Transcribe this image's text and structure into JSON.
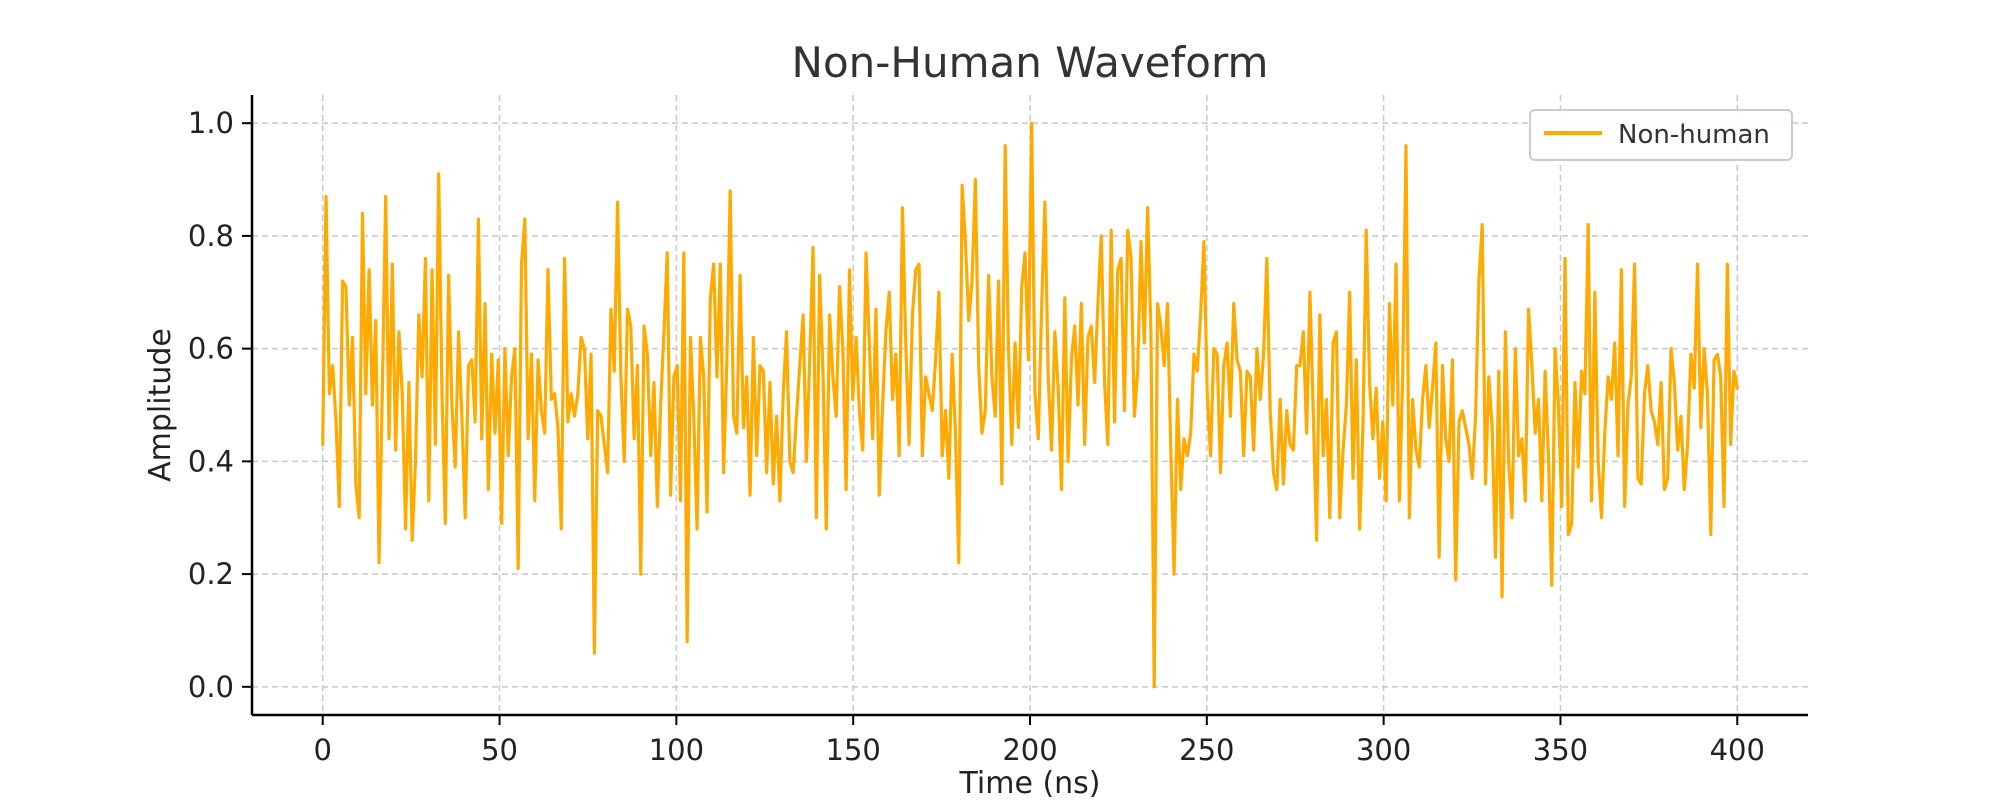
{
  "chart_data": {
    "type": "line",
    "title": "Non-Human Waveform",
    "xlabel": "Time (ns)",
    "ylabel": "Amplitude",
    "xlim": [
      -20,
      420
    ],
    "ylim": [
      -0.05,
      1.05
    ],
    "xticks": [
      0,
      50,
      100,
      150,
      200,
      250,
      300,
      350,
      400
    ],
    "yticks": [
      0.0,
      0.2,
      0.4,
      0.6,
      0.8,
      1.0
    ],
    "xtick_labels": [
      "0",
      "50",
      "100",
      "150",
      "200",
      "250",
      "300",
      "350",
      "400"
    ],
    "ytick_labels": [
      "0.0",
      "0.2",
      "0.4",
      "0.6",
      "0.8",
      "1.0"
    ],
    "grid": true,
    "legend_position": "top-right",
    "series": [
      {
        "name": "Non-human",
        "color": "#FFAA00",
        "x_start": 0,
        "x_end": 400,
        "values": [
          0.43,
          0.87,
          0.52,
          0.57,
          0.47,
          0.32,
          0.72,
          0.71,
          0.5,
          0.62,
          0.36,
          0.3,
          0.84,
          0.52,
          0.74,
          0.5,
          0.65,
          0.22,
          0.53,
          0.87,
          0.44,
          0.75,
          0.42,
          0.63,
          0.52,
          0.28,
          0.54,
          0.26,
          0.4,
          0.66,
          0.55,
          0.76,
          0.33,
          0.74,
          0.43,
          0.91,
          0.52,
          0.29,
          0.73,
          0.5,
          0.39,
          0.63,
          0.48,
          0.3,
          0.57,
          0.58,
          0.47,
          0.83,
          0.44,
          0.68,
          0.35,
          0.59,
          0.45,
          0.58,
          0.29,
          0.6,
          0.41,
          0.55,
          0.6,
          0.21,
          0.75,
          0.83,
          0.44,
          0.59,
          0.33,
          0.58,
          0.49,
          0.45,
          0.74,
          0.51,
          0.52,
          0.46,
          0.28,
          0.76,
          0.47,
          0.52,
          0.48,
          0.52,
          0.62,
          0.6,
          0.44,
          0.59,
          0.06,
          0.49,
          0.48,
          0.43,
          0.38,
          0.67,
          0.56,
          0.86,
          0.55,
          0.4,
          0.67,
          0.64,
          0.44,
          0.57,
          0.2,
          0.64,
          0.59,
          0.41,
          0.54,
          0.32,
          0.5,
          0.63,
          0.77,
          0.34,
          0.55,
          0.57,
          0.33,
          0.77,
          0.08,
          0.62,
          0.48,
          0.28,
          0.62,
          0.55,
          0.31,
          0.69,
          0.75,
          0.55,
          0.75,
          0.38,
          0.58,
          0.88,
          0.48,
          0.45,
          0.73,
          0.46,
          0.55,
          0.34,
          0.62,
          0.41,
          0.57,
          0.56,
          0.38,
          0.54,
          0.36,
          0.48,
          0.33,
          0.52,
          0.63,
          0.4,
          0.38,
          0.48,
          0.57,
          0.66,
          0.4,
          0.58,
          0.78,
          0.3,
          0.73,
          0.56,
          0.28,
          0.66,
          0.55,
          0.48,
          0.71,
          0.6,
          0.35,
          0.74,
          0.51,
          0.62,
          0.49,
          0.42,
          0.77,
          0.61,
          0.44,
          0.67,
          0.34,
          0.5,
          0.63,
          0.7,
          0.51,
          0.59,
          0.41,
          0.85,
          0.61,
          0.43,
          0.66,
          0.74,
          0.75,
          0.41,
          0.55,
          0.52,
          0.49,
          0.58,
          0.7,
          0.41,
          0.49,
          0.37,
          0.59,
          0.45,
          0.22,
          0.89,
          0.79,
          0.65,
          0.72,
          0.9,
          0.57,
          0.45,
          0.49,
          0.73,
          0.55,
          0.48,
          0.72,
          0.36,
          0.96,
          0.6,
          0.43,
          0.61,
          0.46,
          0.71,
          0.77,
          0.58,
          1.0,
          0.52,
          0.44,
          0.67,
          0.86,
          0.55,
          0.42,
          0.63,
          0.53,
          0.35,
          0.69,
          0.4,
          0.58,
          0.64,
          0.5,
          0.68,
          0.43,
          0.62,
          0.64,
          0.54,
          0.68,
          0.8,
          0.54,
          0.43,
          0.81,
          0.47,
          0.74,
          0.76,
          0.49,
          0.81,
          0.76,
          0.48,
          0.56,
          0.79,
          0.61,
          0.85,
          0.63,
          0.0,
          0.68,
          0.64,
          0.57,
          0.68,
          0.42,
          0.2,
          0.51,
          0.35,
          0.44,
          0.41,
          0.45,
          0.59,
          0.56,
          0.66,
          0.79,
          0.52,
          0.41,
          0.6,
          0.59,
          0.38,
          0.57,
          0.61,
          0.48,
          0.68,
          0.58,
          0.56,
          0.41,
          0.56,
          0.55,
          0.42,
          0.6,
          0.51,
          0.59,
          0.76,
          0.49,
          0.38,
          0.35,
          0.51,
          0.36,
          0.49,
          0.43,
          0.42,
          0.57,
          0.57,
          0.63,
          0.45,
          0.7,
          0.49,
          0.26,
          0.66,
          0.41,
          0.51,
          0.3,
          0.61,
          0.63,
          0.3,
          0.42,
          0.5,
          0.7,
          0.37,
          0.58,
          0.28,
          0.46,
          0.81,
          0.54,
          0.44,
          0.53,
          0.37,
          0.47,
          0.33,
          0.68,
          0.5,
          0.75,
          0.33,
          0.55,
          0.96,
          0.3,
          0.51,
          0.42,
          0.39,
          0.51,
          0.57,
          0.46,
          0.53,
          0.61,
          0.23,
          0.57,
          0.44,
          0.4,
          0.58,
          0.19,
          0.47,
          0.49,
          0.46,
          0.43,
          0.37,
          0.48,
          0.72,
          0.82,
          0.36,
          0.55,
          0.46,
          0.23,
          0.56,
          0.16,
          0.63,
          0.4,
          0.3,
          0.6,
          0.41,
          0.44,
          0.33,
          0.67,
          0.57,
          0.45,
          0.51,
          0.33,
          0.56,
          0.41,
          0.18,
          0.6,
          0.5,
          0.32,
          0.76,
          0.27,
          0.29,
          0.54,
          0.39,
          0.56,
          0.52,
          0.82,
          0.33,
          0.7,
          0.4,
          0.3,
          0.45,
          0.55,
          0.51,
          0.61,
          0.41,
          0.74,
          0.32,
          0.5,
          0.55,
          0.75,
          0.37,
          0.36,
          0.52,
          0.57,
          0.49,
          0.47,
          0.43,
          0.54,
          0.35,
          0.37,
          0.6,
          0.54,
          0.42,
          0.48,
          0.35,
          0.43,
          0.59,
          0.53,
          0.75,
          0.46,
          0.6,
          0.52,
          0.27,
          0.58,
          0.59,
          0.55,
          0.32,
          0.75,
          0.43,
          0.56,
          0.53
        ]
      }
    ]
  }
}
